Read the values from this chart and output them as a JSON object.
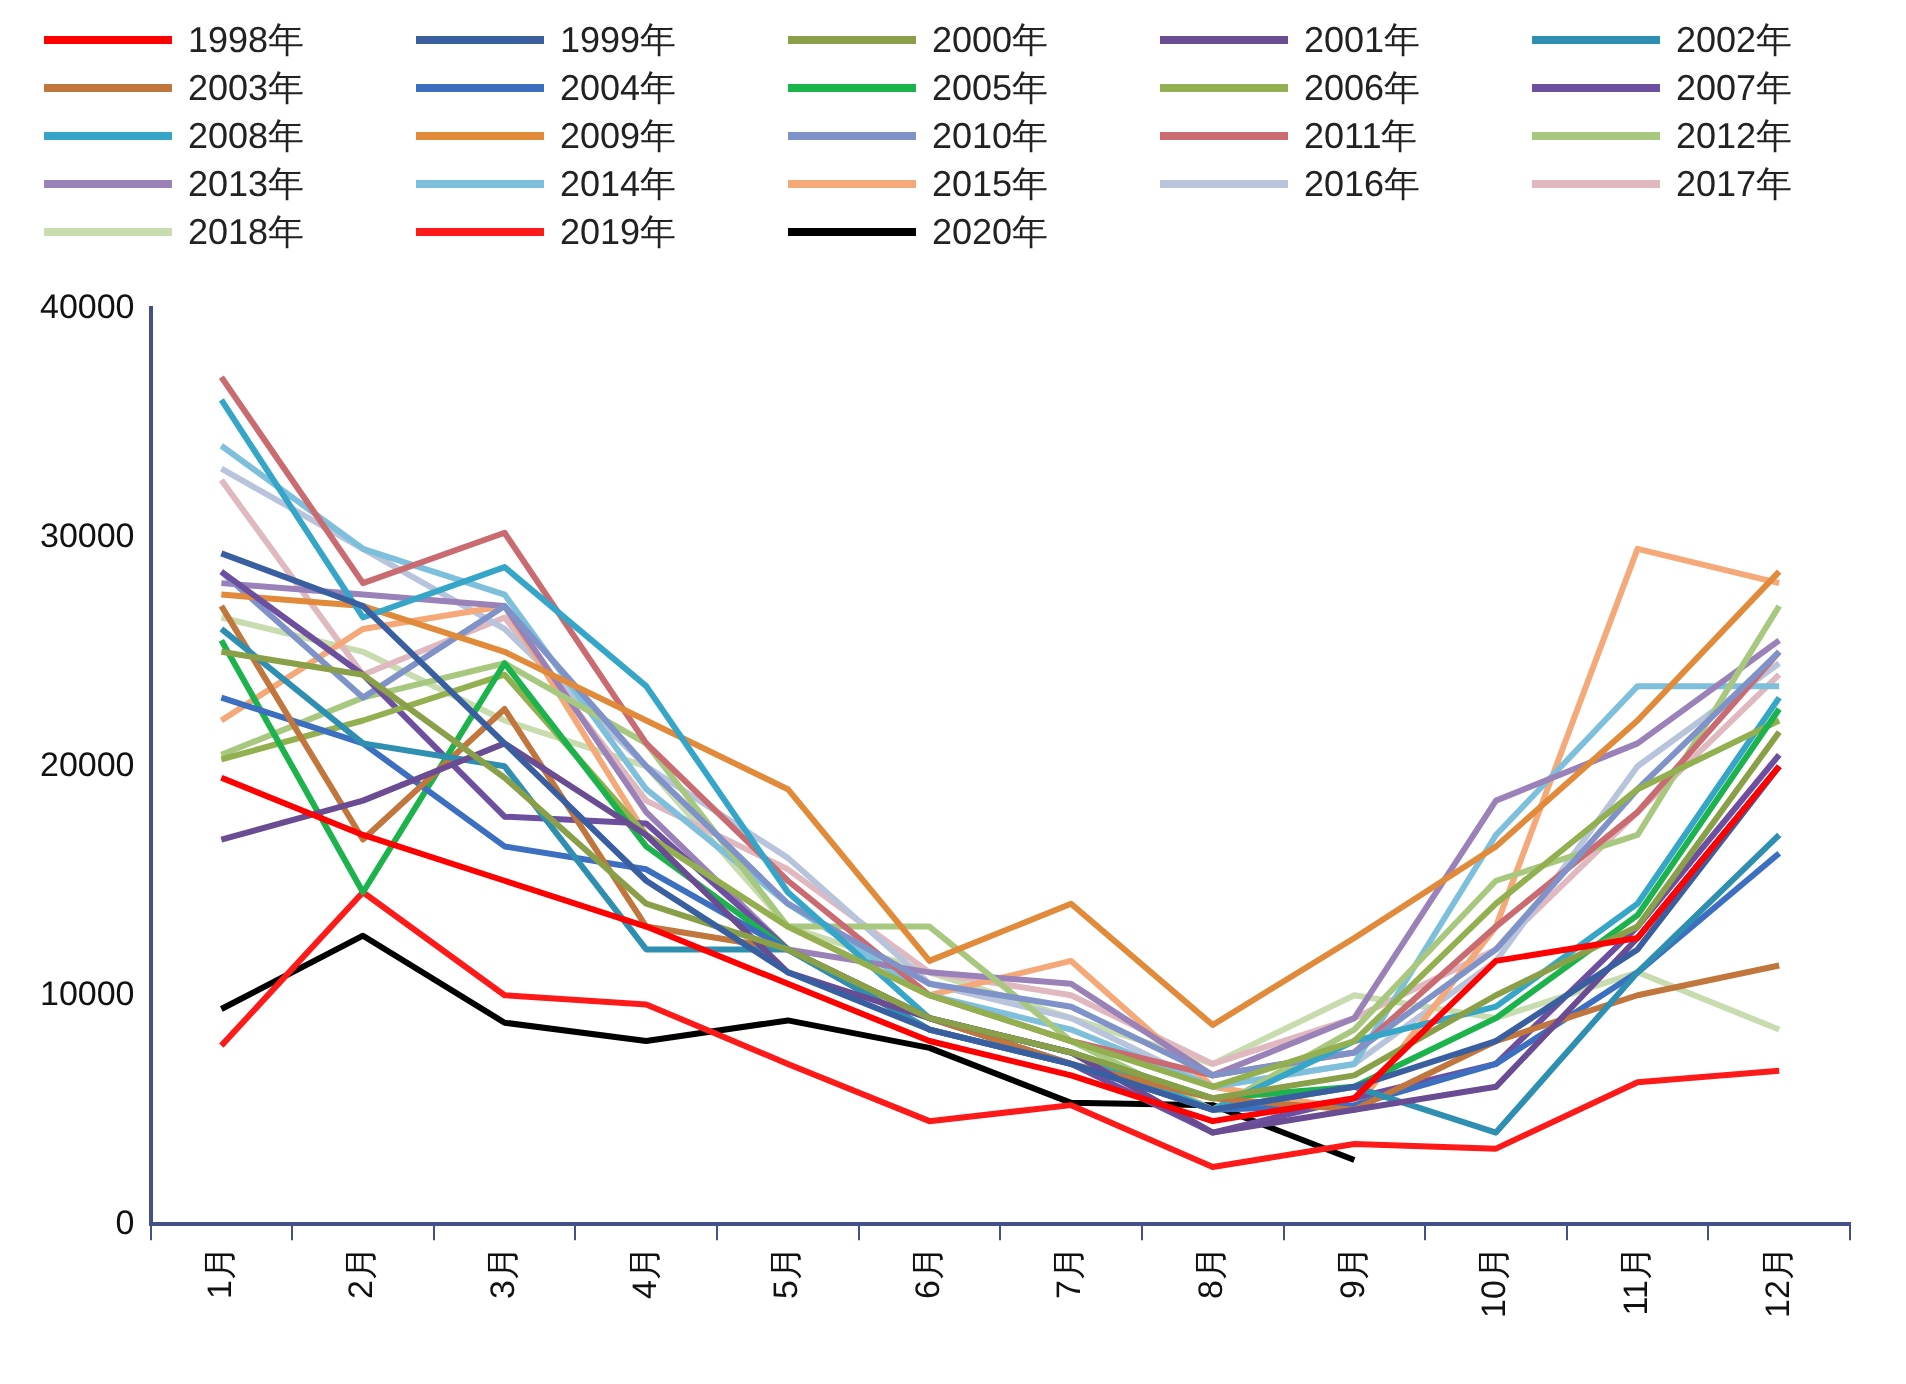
{
  "chart_data": {
    "type": "line",
    "categories": [
      "1月",
      "2月",
      "3月",
      "4月",
      "5月",
      "6月",
      "7月",
      "8月",
      "9月",
      "10月",
      "11月",
      "12月"
    ],
    "ylim": [
      0,
      40000
    ],
    "yticks": [
      0,
      10000,
      20000,
      30000,
      40000
    ],
    "grid": false,
    "legend": "top",
    "marker": "none",
    "line_style": "solid",
    "series": [
      {
        "name": "1998年",
        "color": "#ff0000",
        "values": [
          19500,
          17000,
          15000,
          13000,
          10500,
          8000,
          6500,
          4500,
          5500,
          11500,
          12500,
          20000
        ]
      },
      {
        "name": "1999年",
        "color": "#3a5fa0",
        "values": [
          29300,
          27000,
          21000,
          15000,
          11000,
          8500,
          7000,
          5000,
          6000,
          8000,
          12000,
          20000
        ]
      },
      {
        "name": "2000年",
        "color": "#8aa048",
        "values": [
          25000,
          24000,
          19500,
          14000,
          12000,
          9000,
          7500,
          5500,
          6500,
          10000,
          13000,
          21500
        ]
      },
      {
        "name": "2001年",
        "color": "#6a4c93",
        "values": [
          16800,
          18500,
          21000,
          17000,
          11000,
          9000,
          7500,
          4000,
          5000,
          6000,
          12500,
          20000
        ]
      },
      {
        "name": "2002年",
        "color": "#2e8fb0",
        "values": [
          26000,
          21000,
          20000,
          12000,
          12000,
          8500,
          7000,
          5000,
          6000,
          4000,
          11000,
          17000
        ]
      },
      {
        "name": "2003年",
        "color": "#c0763c",
        "values": [
          27000,
          16800,
          22500,
          13000,
          12000,
          9000,
          7000,
          5500,
          5000,
          8000,
          10000,
          11300
        ]
      },
      {
        "name": "2004年",
        "color": "#3d6fc0",
        "values": [
          23000,
          21000,
          16500,
          15500,
          12000,
          9000,
          7000,
          5000,
          5200,
          7000,
          11000,
          16200
        ]
      },
      {
        "name": "2005年",
        "color": "#1cb34c",
        "values": [
          25500,
          14500,
          24500,
          16500,
          12000,
          9000,
          7500,
          5500,
          6000,
          9000,
          13500,
          22500
        ]
      },
      {
        "name": "2006年",
        "color": "#93b050",
        "values": [
          20300,
          22000,
          24000,
          17000,
          13000,
          10000,
          8000,
          6000,
          8000,
          14000,
          19000,
          22000
        ]
      },
      {
        "name": "2007年",
        "color": "#6d4fa0",
        "values": [
          28500,
          24000,
          17800,
          17500,
          12000,
          8500,
          7000,
          4000,
          5500,
          7000,
          13000,
          20500
        ]
      },
      {
        "name": "2008年",
        "color": "#35a6c8",
        "values": [
          36000,
          26500,
          28700,
          23500,
          14500,
          9000,
          7500,
          5000,
          8000,
          9500,
          14000,
          23000
        ]
      },
      {
        "name": "2009年",
        "color": "#e08a3a",
        "values": [
          27500,
          27000,
          25000,
          22000,
          19000,
          11500,
          14000,
          8700,
          12500,
          16500,
          22000,
          28500
        ]
      },
      {
        "name": "2010年",
        "color": "#7f93c8",
        "values": [
          28500,
          23000,
          27000,
          20000,
          14000,
          10500,
          9500,
          6500,
          7500,
          12000,
          19000,
          25000
        ]
      },
      {
        "name": "2011年",
        "color": "#c96b70",
        "values": [
          37000,
          28000,
          30200,
          21000,
          15000,
          10000,
          8000,
          6500,
          7500,
          13000,
          18000,
          25000
        ]
      },
      {
        "name": "2012年",
        "color": "#a8c880",
        "values": [
          20500,
          23000,
          24500,
          21000,
          13000,
          13000,
          8000,
          5000,
          8500,
          15000,
          17000,
          27000
        ]
      },
      {
        "name": "2013年",
        "color": "#9a82b8",
        "values": [
          28000,
          27500,
          27000,
          18000,
          12000,
          11000,
          10500,
          6500,
          9000,
          18500,
          21000,
          25500
        ]
      },
      {
        "name": "2014年",
        "color": "#7ec0dc",
        "values": [
          34000,
          29500,
          27500,
          19000,
          14000,
          10000,
          8500,
          6000,
          7000,
          17000,
          23500,
          23500
        ]
      },
      {
        "name": "2015年",
        "color": "#f5a878",
        "values": [
          22000,
          26000,
          27000,
          17000,
          13000,
          10000,
          11500,
          6000,
          5000,
          13000,
          29500,
          28000
        ]
      },
      {
        "name": "2016年",
        "color": "#b8c4dc",
        "values": [
          33000,
          29500,
          26000,
          20000,
          16000,
          10500,
          9000,
          6000,
          7000,
          11500,
          20000,
          24500
        ]
      },
      {
        "name": "2017年",
        "color": "#e0b8c0",
        "values": [
          32500,
          24000,
          26500,
          18500,
          15500,
          11000,
          10000,
          7000,
          9000,
          12000,
          18000,
          24000
        ]
      },
      {
        "name": "2018年",
        "color": "#c8dcb0",
        "values": [
          26500,
          25000,
          22000,
          20000,
          13000,
          11000,
          9000,
          7000,
          10000,
          9000,
          11000,
          8500
        ]
      },
      {
        "name": "2019年",
        "color": "#ff1a1a",
        "values": [
          7800,
          14500,
          10000,
          9600,
          7000,
          4500,
          5200,
          2500,
          3500,
          3300,
          6200,
          6700
        ]
      },
      {
        "name": "2020年",
        "color": "#000000",
        "values": [
          9400,
          12600,
          8800,
          8000,
          8900,
          7700,
          5300,
          5200,
          2800,
          null,
          null,
          null
        ]
      }
    ]
  }
}
